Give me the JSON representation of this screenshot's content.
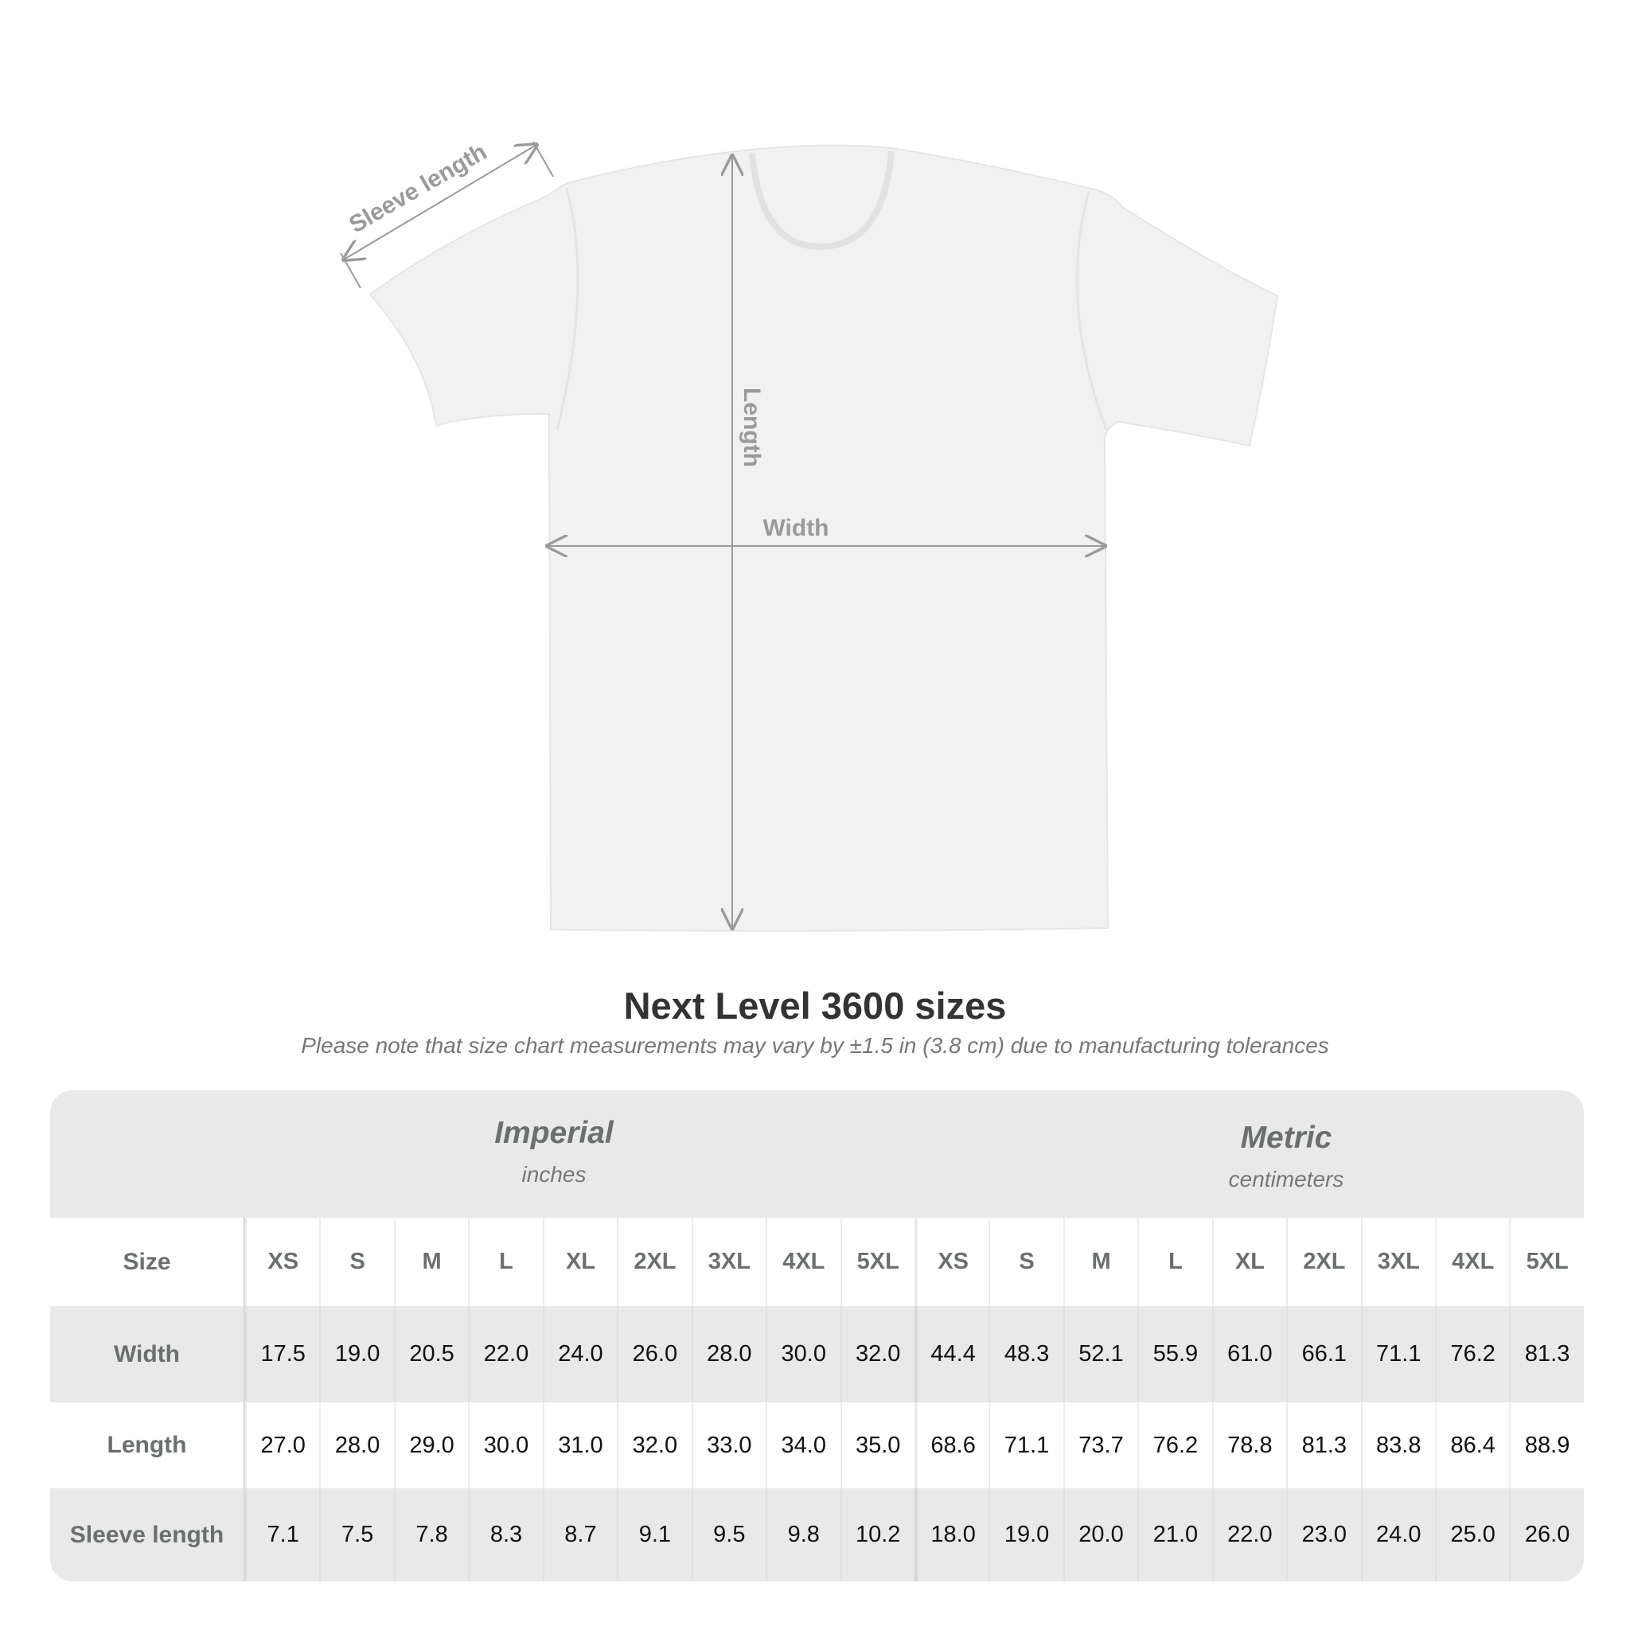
{
  "diagram": {
    "sleeve_label": "Sleeve length",
    "length_label": "Length",
    "width_label": "Width",
    "shirt_color": "#f1f1f1",
    "arrow_color": "#9a9a9a"
  },
  "title": "Next Level 3600 sizes",
  "subtitle": "Please note that size chart measurements may vary by ±1.5 in (3.8 cm) due to manufacturing tolerances",
  "table": {
    "imperial": {
      "name": "Imperial",
      "unit": "inches"
    },
    "metric": {
      "name": "Metric",
      "unit": "centimeters"
    },
    "size_label": "Size",
    "sizes": [
      "XS",
      "S",
      "M",
      "L",
      "XL",
      "2XL",
      "3XL",
      "4XL",
      "5XL"
    ],
    "rows": [
      {
        "label": "Width",
        "imperial": [
          "17.5",
          "19.0",
          "20.5",
          "22.0",
          "24.0",
          "26.0",
          "28.0",
          "30.0",
          "32.0"
        ],
        "metric": [
          "44.4",
          "48.3",
          "52.1",
          "55.9",
          "61.0",
          "66.1",
          "71.1",
          "76.2",
          "81.3"
        ]
      },
      {
        "label": "Length",
        "imperial": [
          "27.0",
          "28.0",
          "29.0",
          "30.0",
          "31.0",
          "32.0",
          "33.0",
          "34.0",
          "35.0"
        ],
        "metric": [
          "68.6",
          "71.1",
          "73.7",
          "76.2",
          "78.8",
          "81.3",
          "83.8",
          "86.4",
          "88.9"
        ]
      },
      {
        "label": "Sleeve length",
        "imperial": [
          "7.1",
          "7.5",
          "7.8",
          "8.3",
          "8.7",
          "9.1",
          "9.5",
          "9.8",
          "10.2"
        ],
        "metric": [
          "18.0",
          "19.0",
          "20.0",
          "21.0",
          "22.0",
          "23.0",
          "24.0",
          "25.0",
          "26.0"
        ]
      }
    ]
  }
}
